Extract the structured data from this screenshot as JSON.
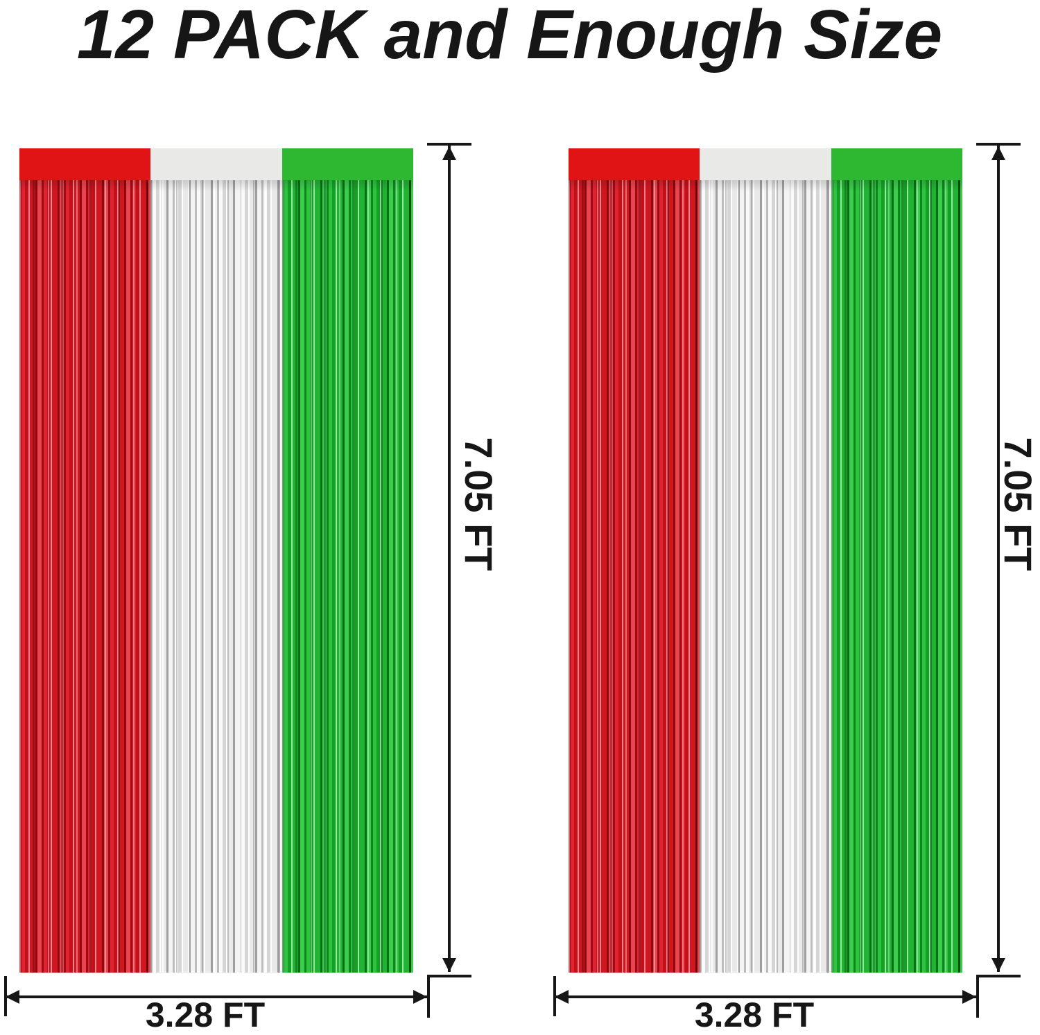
{
  "title": "12 PACK and Enough Size",
  "panels": [
    {
      "height_label": "7.05 FT",
      "width_label": "3.28 FT"
    },
    {
      "height_label": "7.05 FT",
      "width_label": "3.28 FT"
    }
  ],
  "curtain_columns": [
    "red",
    "silver",
    "green"
  ],
  "colors": {
    "ink": "#161616",
    "red_band": "#e01414",
    "white_band": "#e9e9e8",
    "green_band": "#2eb831",
    "red_fringe": "#d2161f",
    "silver_fringe": "#e9e9e9",
    "green_fringe": "#22b334"
  }
}
